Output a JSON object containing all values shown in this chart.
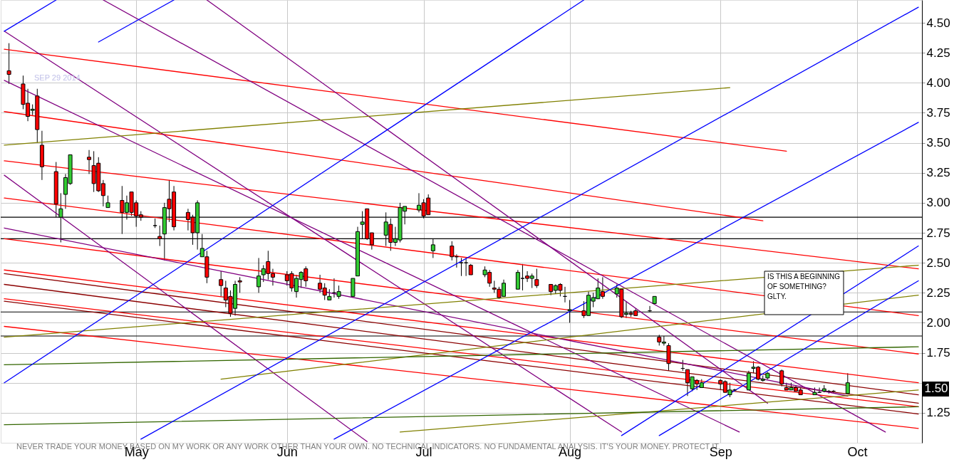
{
  "chart_data": {
    "type": "candlestick",
    "x": [
      "2014-04-04",
      "2014-04-07",
      "2014-04-08",
      "2014-04-09",
      "2014-04-10",
      "2014-04-11",
      "2014-04-14",
      "2014-04-15",
      "2014-04-16",
      "2014-04-17",
      "2014-04-21",
      "2014-04-22",
      "2014-04-23",
      "2014-04-24",
      "2014-04-25",
      "2014-04-28",
      "2014-04-29",
      "2014-04-30",
      "2014-05-01",
      "2014-05-02",
      "2014-05-05",
      "2014-05-06",
      "2014-05-07",
      "2014-05-08",
      "2014-05-09",
      "2014-05-12",
      "2014-05-13",
      "2014-05-14",
      "2014-05-15",
      "2014-05-16",
      "2014-05-19",
      "2014-05-20",
      "2014-05-21",
      "2014-05-22",
      "2014-05-23",
      "2014-05-27",
      "2014-05-28",
      "2014-05-29",
      "2014-05-30",
      "2014-06-02",
      "2014-06-03",
      "2014-06-04",
      "2014-06-05",
      "2014-06-06",
      "2014-06-09",
      "2014-06-10",
      "2014-06-11",
      "2014-06-12",
      "2014-06-13",
      "2014-06-16",
      "2014-06-17",
      "2014-06-18",
      "2014-06-19",
      "2014-06-20",
      "2014-06-23",
      "2014-06-24",
      "2014-06-25",
      "2014-06-26",
      "2014-06-27",
      "2014-06-30",
      "2014-07-01",
      "2014-07-02",
      "2014-07-03",
      "2014-07-07",
      "2014-07-08",
      "2014-07-09",
      "2014-07-10",
      "2014-07-11",
      "2014-07-14",
      "2014-07-15",
      "2014-07-16",
      "2014-07-17",
      "2014-07-18",
      "2014-07-21",
      "2014-07-22",
      "2014-07-23",
      "2014-07-24",
      "2014-07-25",
      "2014-07-28",
      "2014-07-29",
      "2014-07-30",
      "2014-07-31",
      "2014-08-01",
      "2014-08-04",
      "2014-08-05",
      "2014-08-06",
      "2014-08-07",
      "2014-08-08",
      "2014-08-11",
      "2014-08-12",
      "2014-08-13",
      "2014-08-14",
      "2014-08-15",
      "2014-08-18",
      "2014-08-19",
      "2014-08-20",
      "2014-08-21",
      "2014-08-22",
      "2014-08-25",
      "2014-08-26",
      "2014-08-27",
      "2014-08-28",
      "2014-08-29",
      "2014-09-02",
      "2014-09-03",
      "2014-09-04",
      "2014-09-05",
      "2014-09-08",
      "2014-09-09",
      "2014-09-10",
      "2014-09-11",
      "2014-09-12",
      "2014-09-15",
      "2014-09-16",
      "2014-09-17",
      "2014-09-18",
      "2014-09-19",
      "2014-09-22",
      "2014-09-23",
      "2014-09-24",
      "2014-09-25",
      "2014-09-26",
      "2014-09-29"
    ],
    "ohlc": [
      [
        4.1,
        4.33,
        3.99,
        4.07
      ],
      [
        3.99,
        4.06,
        3.78,
        3.82
      ],
      [
        3.83,
        3.95,
        3.68,
        3.72
      ],
      [
        3.77,
        3.82,
        3.73,
        3.78
      ],
      [
        3.89,
        3.95,
        3.5,
        3.61
      ],
      [
        3.48,
        3.6,
        3.19,
        3.3
      ],
      [
        3.26,
        3.34,
        2.88,
        2.99
      ],
      [
        2.88,
        3.08,
        2.67,
        2.95
      ],
      [
        3.07,
        3.24,
        2.95,
        3.21
      ],
      [
        3.16,
        3.4,
        3.15,
        3.4
      ],
      [
        3.38,
        3.44,
        3.24,
        3.36
      ],
      [
        3.31,
        3.43,
        3.09,
        3.16
      ],
      [
        3.33,
        3.38,
        3.09,
        3.1
      ],
      [
        3.16,
        3.19,
        2.97,
        3.06
      ],
      [
        2.96,
        3.06,
        2.96,
        3.0
      ],
      [
        3.02,
        3.14,
        2.74,
        2.92
      ],
      [
        2.92,
        3.06,
        2.86,
        3.0
      ],
      [
        3.09,
        3.09,
        2.89,
        2.92
      ],
      [
        3.0,
        3.02,
        2.8,
        2.89
      ],
      [
        2.9,
        2.93,
        2.85,
        2.88
      ],
      [
        2.81,
        2.87,
        2.79,
        2.81
      ],
      [
        2.72,
        2.81,
        2.64,
        2.7
      ],
      [
        2.74,
        3.0,
        2.52,
        2.96
      ],
      [
        3.03,
        3.19,
        2.84,
        2.95
      ],
      [
        3.09,
        3.14,
        2.77,
        2.8
      ],
      [
        2.92,
        2.95,
        2.77,
        2.86
      ],
      [
        2.88,
        2.9,
        2.65,
        2.75
      ],
      [
        2.75,
        3.02,
        2.61,
        3.0
      ],
      [
        2.55,
        2.74,
        2.55,
        2.62
      ],
      [
        2.55,
        2.6,
        2.33,
        2.38
      ],
      [
        2.36,
        2.43,
        2.22,
        2.31
      ],
      [
        2.29,
        2.35,
        2.13,
        2.19
      ],
      [
        2.22,
        2.27,
        2.05,
        2.08
      ],
      [
        2.12,
        2.35,
        2.06,
        2.32
      ],
      [
        2.35,
        2.38,
        2.25,
        2.34
      ],
      [
        2.3,
        2.54,
        2.25,
        2.39
      ],
      [
        2.4,
        2.48,
        2.34,
        2.45
      ],
      [
        2.51,
        2.6,
        2.36,
        2.41
      ],
      [
        2.41,
        2.45,
        2.31,
        2.38
      ],
      [
        2.4,
        2.43,
        2.31,
        2.35
      ],
      [
        2.41,
        2.43,
        2.26,
        2.29
      ],
      [
        2.26,
        2.4,
        2.21,
        2.37
      ],
      [
        2.36,
        2.43,
        2.29,
        2.42
      ],
      [
        2.45,
        2.47,
        2.3,
        2.35
      ],
      [
        2.33,
        2.4,
        2.25,
        2.28
      ],
      [
        2.29,
        2.33,
        2.19,
        2.23
      ],
      [
        2.19,
        2.28,
        2.19,
        2.22
      ],
      [
        2.25,
        2.37,
        2.21,
        2.25
      ],
      [
        2.22,
        2.31,
        2.2,
        2.26
      ],
      [
        2.22,
        2.37,
        2.22,
        2.37
      ],
      [
        2.39,
        2.8,
        2.39,
        2.76
      ],
      [
        2.82,
        2.93,
        2.7,
        2.84
      ],
      [
        2.95,
        2.95,
        2.69,
        2.7
      ],
      [
        2.75,
        2.75,
        2.61,
        2.65
      ],
      [
        2.73,
        2.92,
        2.64,
        2.84
      ],
      [
        2.82,
        2.87,
        2.6,
        2.67
      ],
      [
        2.67,
        2.8,
        2.64,
        2.7
      ],
      [
        2.69,
        3.0,
        2.67,
        2.96
      ],
      [
        2.93,
        2.97,
        2.82,
        2.97
      ],
      [
        2.94,
        3.08,
        2.92,
        2.98
      ],
      [
        3.0,
        3.03,
        2.87,
        2.89
      ],
      [
        3.04,
        3.07,
        2.9,
        2.9
      ],
      [
        2.6,
        2.7,
        2.54,
        2.65
      ],
      [
        2.64,
        2.68,
        2.52,
        2.55
      ],
      [
        2.55,
        2.57,
        2.46,
        2.55
      ],
      [
        2.5,
        2.54,
        2.39,
        2.5
      ],
      [
        2.5,
        2.54,
        2.39,
        2.5
      ],
      [
        2.48,
        2.49,
        2.4,
        2.4
      ],
      [
        2.4,
        2.47,
        2.38,
        2.44
      ],
      [
        2.42,
        2.44,
        2.3,
        2.33
      ],
      [
        2.29,
        2.35,
        2.25,
        2.28
      ],
      [
        2.28,
        2.3,
        2.2,
        2.21
      ],
      [
        2.22,
        2.36,
        2.22,
        2.33
      ],
      [
        2.28,
        2.44,
        2.28,
        2.42
      ],
      [
        2.37,
        2.49,
        2.27,
        2.37
      ],
      [
        2.39,
        2.43,
        2.34,
        2.37
      ],
      [
        2.37,
        2.41,
        2.29,
        2.39
      ],
      [
        2.36,
        2.45,
        2.29,
        2.31
      ],
      [
        2.32,
        2.32,
        2.23,
        2.26
      ],
      [
        2.27,
        2.32,
        2.24,
        2.31
      ],
      [
        2.32,
        2.33,
        2.22,
        2.27
      ],
      [
        2.22,
        2.3,
        2.17,
        2.22
      ],
      [
        2.1,
        2.19,
        2.0,
        2.11
      ],
      [
        2.1,
        2.18,
        2.04,
        2.06
      ],
      [
        2.06,
        2.26,
        2.06,
        2.23
      ],
      [
        2.18,
        2.25,
        2.13,
        2.21
      ],
      [
        2.2,
        2.37,
        2.2,
        2.29
      ],
      [
        2.26,
        2.38,
        2.2,
        2.22
      ],
      [
        2.24,
        2.32,
        2.21,
        2.29
      ],
      [
        2.28,
        2.28,
        2.04,
        2.05
      ],
      [
        2.07,
        2.18,
        2.04,
        2.08
      ],
      [
        2.08,
        2.1,
        2.05,
        2.07
      ],
      [
        2.1,
        2.12,
        2.06,
        2.06
      ],
      [
        2.1,
        2.14,
        2.09,
        2.1
      ],
      [
        2.16,
        2.22,
        2.16,
        2.22
      ],
      [
        1.88,
        1.9,
        1.81,
        1.84
      ],
      [
        1.83,
        1.89,
        1.81,
        1.84
      ],
      [
        1.81,
        1.83,
        1.6,
        1.66
      ],
      [
        1.62,
        1.69,
        1.6,
        1.62
      ],
      [
        1.61,
        1.61,
        1.39,
        1.5
      ],
      [
        1.45,
        1.55,
        1.43,
        1.55
      ],
      [
        1.52,
        1.53,
        1.44,
        1.49
      ],
      [
        1.46,
        1.53,
        1.46,
        1.5
      ],
      [
        1.52,
        1.53,
        1.44,
        1.49
      ],
      [
        1.51,
        1.52,
        1.42,
        1.42
      ],
      [
        1.4,
        1.5,
        1.38,
        1.44
      ],
      [
        1.44,
        1.45,
        1.43,
        1.44
      ],
      [
        1.44,
        1.6,
        1.44,
        1.58
      ],
      [
        1.62,
        1.68,
        1.58,
        1.63
      ],
      [
        1.63,
        1.64,
        1.52,
        1.53
      ],
      [
        1.52,
        1.56,
        1.51,
        1.53
      ],
      [
        1.54,
        1.59,
        1.53,
        1.58
      ],
      [
        1.6,
        1.61,
        1.47,
        1.49
      ],
      [
        1.46,
        1.5,
        1.44,
        1.44
      ],
      [
        1.44,
        1.5,
        1.44,
        1.46
      ],
      [
        1.46,
        1.48,
        1.43,
        1.43
      ],
      [
        1.44,
        1.46,
        1.4,
        1.4
      ],
      [
        1.4,
        1.46,
        1.4,
        1.42
      ],
      [
        1.42,
        1.46,
        1.42,
        1.42
      ],
      [
        1.43,
        1.48,
        1.42,
        1.45
      ],
      [
        1.43,
        1.44,
        1.41,
        1.43
      ],
      [
        1.43,
        1.44,
        1.41,
        1.43
      ],
      [
        1.41,
        1.58,
        1.41,
        1.5
      ]
    ],
    "colors": [
      "#ff0000",
      "#ff0000",
      "#ff0000",
      "#33cc33",
      "#ff0000",
      "#ff0000",
      "#ff0000",
      "#33cc33",
      "#33cc33",
      "#33cc33",
      "#ff0000",
      "#ff0000",
      "#ff0000",
      "#ff0000",
      "#33cc33",
      "#ff0000",
      "#33cc33",
      "#ff0000",
      "#ff0000",
      "#ff0000",
      "#000000",
      "#ff0000",
      "#33cc33",
      "#ff0000",
      "#ff0000",
      "#ff0000",
      "#ff0000",
      "#33cc33",
      "#33cc33",
      "#ff0000",
      "#ff0000",
      "#ff0000",
      "#ff0000",
      "#33cc33",
      "#ff0000",
      "#33cc33",
      "#33cc33",
      "#ff0000",
      "#ff0000",
      "#ff0000",
      "#ff0000",
      "#33cc33",
      "#33cc33",
      "#ff0000",
      "#ff0000",
      "#ff0000",
      "#33cc33",
      "#000000",
      "#33cc33",
      "#33cc33",
      "#33cc33",
      "#33cc33",
      "#ff0000",
      "#ff0000",
      "#33cc33",
      "#ff0000",
      "#33cc33",
      "#33cc33",
      "#33cc33",
      "#33cc33",
      "#ff0000",
      "#ff0000",
      "#33cc33",
      "#ff0000",
      "#000000",
      "#000000",
      "#000000",
      "#ff0000",
      "#33cc33",
      "#ff0000",
      "#ff0000",
      "#ff0000",
      "#33cc33",
      "#33cc33",
      "#000000",
      "#ff0000",
      "#33cc33",
      "#ff0000",
      "#ff0000",
      "#33cc33",
      "#ff0000",
      "#000000",
      "#33cc33",
      "#ff0000",
      "#33cc33",
      "#33cc33",
      "#33cc33",
      "#ff0000",
      "#33cc33",
      "#ff0000",
      "#33cc33",
      "#ff0000",
      "#ff0000",
      "#000000",
      "#33cc33",
      "#ff0000",
      "#33cc33",
      "#ff0000",
      "#000000",
      "#ff0000",
      "#33cc33",
      "#ff0000",
      "#33cc33",
      "#ff0000",
      "#ff0000",
      "#33cc33",
      "#000000",
      "#33cc33",
      "#33cc33",
      "#ff0000",
      "#33cc33",
      "#33cc33",
      "#ff0000",
      "#ff0000",
      "#33cc33",
      "#ff0000",
      "#ff0000",
      "#33cc33",
      "#000000",
      "#33cc33",
      "#000000",
      "#000000",
      "#33cc33"
    ],
    "series": [
      {
        "type": "line",
        "color": "#ff0000",
        "x": [
          "2014-04-03",
          "2014-09-16"
        ],
        "values": [
          4.28,
          3.43
        ]
      },
      {
        "type": "line",
        "color": "#ff0000",
        "x": [
          "2014-04-03",
          "2014-09-11"
        ],
        "values": [
          3.76,
          2.85
        ]
      },
      {
        "type": "line",
        "color": "#ff0000",
        "x": [
          "2014-04-03",
          "2014-10-14"
        ],
        "values": [
          3.35,
          2.45
        ]
      },
      {
        "type": "line",
        "color": "#ff0000",
        "x": [
          "2014-04-03",
          "2014-10-14"
        ],
        "values": [
          3.04,
          2.06
        ]
      },
      {
        "type": "line",
        "color": "#ff0000",
        "x": [
          "2014-04-03",
          "2014-10-14"
        ],
        "values": [
          2.7,
          1.74
        ]
      },
      {
        "type": "line",
        "color": "#ff0000",
        "x": [
          "2014-04-03",
          "2014-10-14"
        ],
        "values": [
          2.44,
          1.5
        ]
      },
      {
        "type": "line",
        "color": "#ff0000",
        "x": [
          "2014-04-03",
          "2014-10-14"
        ],
        "values": [
          2.2,
          1.3
        ]
      },
      {
        "type": "line",
        "color": "#ff0000",
        "x": [
          "2014-04-03",
          "2014-10-14"
        ],
        "values": [
          1.97,
          1.12
        ]
      },
      {
        "type": "line",
        "color": "#8b0000",
        "x": [
          "2014-04-03",
          "2014-10-14"
        ],
        "values": [
          2.41,
          1.4
        ]
      },
      {
        "type": "line",
        "color": "#8b0000",
        "x": [
          "2014-04-03",
          "2014-10-14"
        ],
        "values": [
          2.32,
          1.33
        ]
      },
      {
        "type": "line",
        "color": "#8b0000",
        "x": [
          "2014-04-03",
          "2014-10-14"
        ],
        "values": [
          2.18,
          1.24
        ]
      },
      {
        "type": "line",
        "color": "#800080",
        "x": [
          "2014-04-24",
          "2014-10-07"
        ],
        "values": [
          4.69,
          1.09
        ]
      },
      {
        "type": "line",
        "color": "#800080",
        "x": [
          "2014-04-03",
          "2014-09-29"
        ],
        "values": [
          2.79,
          1.39
        ]
      },
      {
        "type": "line",
        "color": "#800080",
        "x": [
          "2014-04-03",
          "2014-06-19"
        ],
        "values": [
          3.23,
          1.01
        ]
      },
      {
        "type": "line",
        "color": "#800080",
        "x": [
          "2014-04-03",
          "2014-08-12"
        ],
        "values": [
          4.43,
          1.09
        ]
      },
      {
        "type": "line",
        "color": "#800080",
        "x": [
          "2014-04-03",
          "2014-09-06"
        ],
        "values": [
          4.02,
          1.09
        ]
      },
      {
        "type": "line",
        "color": "#800080",
        "x": [
          "2014-05-16",
          "2014-09-12"
        ],
        "values": [
          4.69,
          1.33
        ]
      },
      {
        "type": "line",
        "color": "#808000",
        "x": [
          "2014-04-03",
          "2014-09-04"
        ],
        "values": [
          3.48,
          3.96
        ]
      },
      {
        "type": "line",
        "color": "#808000",
        "x": [
          "2014-06-26",
          "2014-10-14"
        ],
        "values": [
          1.09,
          1.44
        ]
      },
      {
        "type": "line",
        "color": "#808000",
        "x": [
          "2014-04-03",
          "2014-10-14"
        ],
        "values": [
          1.88,
          2.48
        ]
      },
      {
        "type": "line",
        "color": "#808000",
        "x": [
          "2014-05-19",
          "2014-10-14"
        ],
        "values": [
          1.53,
          2.23
        ]
      },
      {
        "type": "line",
        "color": "#336600",
        "x": [
          "2014-04-03",
          "2014-10-14"
        ],
        "values": [
          1.65,
          1.8
        ]
      },
      {
        "type": "line",
        "color": "#336600",
        "x": [
          "2014-04-03",
          "2014-10-14"
        ],
        "values": [
          1.15,
          1.3
        ]
      },
      {
        "type": "line",
        "color": "#0000ff",
        "x": [
          "2014-04-03",
          "2014-04-14"
        ],
        "values": [
          4.43,
          4.69
        ]
      },
      {
        "type": "line",
        "color": "#0000ff",
        "x": [
          "2014-04-23",
          "2014-05-09"
        ],
        "values": [
          4.34,
          4.69
        ]
      },
      {
        "type": "line",
        "color": "#0000ff",
        "x": [
          "2014-04-03",
          "2014-08-04"
        ],
        "values": [
          1.5,
          4.69
        ]
      },
      {
        "type": "line",
        "color": "#0000ff",
        "x": [
          "2014-05-02",
          "2014-10-14"
        ],
        "values": [
          1.03,
          4.63
        ]
      },
      {
        "type": "line",
        "color": "#0000ff",
        "x": [
          "2014-06-12",
          "2014-10-14"
        ],
        "values": [
          1.03,
          3.67
        ]
      },
      {
        "type": "line",
        "color": "#0000ff",
        "x": [
          "2014-08-12",
          "2014-10-14"
        ],
        "values": [
          1.06,
          2.64
        ]
      },
      {
        "type": "line",
        "color": "#0000ff",
        "x": [
          "2014-08-20",
          "2014-10-14"
        ],
        "values": [
          1.06,
          2.35
        ]
      }
    ],
    "ref_lines": [
      {
        "axis": "y",
        "value": 2.88,
        "color": "#000000"
      },
      {
        "axis": "y",
        "value": 2.7,
        "color": "#000000"
      },
      {
        "axis": "y",
        "value": 2.09,
        "color": "#000000"
      },
      {
        "axis": "y",
        "value": 1.89,
        "color": "#000000"
      }
    ],
    "xlim": [
      "2014-04-03",
      "2014-10-14"
    ],
    "xticks": [
      {
        "value": "2014-05-01",
        "label": "May"
      },
      {
        "value": "2014-06-02",
        "label": "Jun"
      },
      {
        "value": "2014-07-01",
        "label": "Jul"
      },
      {
        "value": "2014-08-01",
        "label": "Aug"
      },
      {
        "value": "2014-09-02",
        "label": "Sep"
      },
      {
        "value": "2014-10-01",
        "label": "Oct"
      }
    ],
    "ylim": [
      1.0,
      4.69
    ],
    "yticks": [
      {
        "value": 1.25,
        "label": "1.25"
      },
      {
        "value": 1.5,
        "label": null
      },
      {
        "value": 1.75,
        "label": "1.75"
      },
      {
        "value": 2.0,
        "label": "2.00"
      },
      {
        "value": 2.25,
        "label": "2.25"
      },
      {
        "value": 2.5,
        "label": "2.50"
      },
      {
        "value": 2.75,
        "label": "2.75"
      },
      {
        "value": 3.0,
        "label": "3.00"
      },
      {
        "value": 3.25,
        "label": "3.25"
      },
      {
        "value": 3.5,
        "label": "3.50"
      },
      {
        "value": 3.75,
        "label": "3.75"
      },
      {
        "value": 4.0,
        "label": "4.00"
      },
      {
        "value": 4.25,
        "label": "4.25"
      },
      {
        "value": 4.5,
        "label": "4.50"
      }
    ],
    "grid": true,
    "annotations": [
      "SEP 29 2014",
      "IS THIS A BEGINNING\nOF SOMETHING?\n\nGLTY.",
      "NEVER TRADE YOUR MONEY BASED ON MY WORK OR ANY WORK OTHER THAN YOUR OWN. NO TECHNICAL INDICATORS. NO FUNDAMENTAL ANALYSIS. IT'S YOUR MONEY. PROTECT IT.",
      "1.50"
    ]
  }
}
